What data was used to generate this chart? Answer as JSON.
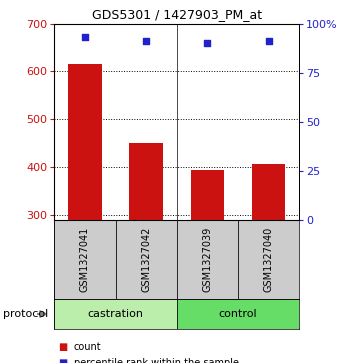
{
  "title": "GDS5301 / 1427903_PM_at",
  "samples": [
    "GSM1327041",
    "GSM1327042",
    "GSM1327039",
    "GSM1327040"
  ],
  "bar_values": [
    615,
    450,
    393,
    407
  ],
  "percentile_values": [
    93,
    91,
    90,
    91
  ],
  "bar_color": "#cc1111",
  "dot_color": "#2222cc",
  "ylim_left": [
    290,
    700
  ],
  "ylim_right": [
    0,
    100
  ],
  "yticks_left": [
    300,
    400,
    500,
    600,
    700
  ],
  "yticks_right": [
    0,
    25,
    50,
    75,
    100
  ],
  "groups": [
    {
      "label": "castration",
      "color": "#bbeeaa"
    },
    {
      "label": "control",
      "color": "#66dd66"
    }
  ],
  "protocol_label": "protocol",
  "legend_items": [
    {
      "label": "count",
      "color": "#cc1111"
    },
    {
      "label": "percentile rank within the sample",
      "color": "#2222cc"
    }
  ],
  "bar_width": 0.55,
  "background_color": "#ffffff",
  "label_area_bg": "#cccccc",
  "figsize": [
    3.5,
    3.63
  ],
  "dpi": 100
}
